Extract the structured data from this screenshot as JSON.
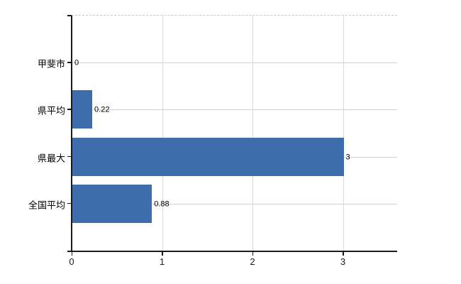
{
  "chart_data": {
    "type": "bar",
    "orientation": "horizontal",
    "title": "",
    "categories": [
      "甲斐市",
      "県平均",
      "県最大",
      "全国平均"
    ],
    "values": [
      0,
      0.22,
      3,
      0.88
    ],
    "value_labels": [
      "0",
      "0.22",
      "3",
      "0.88"
    ],
    "x_axis": {
      "min": 0,
      "max": 3.6,
      "ticks": [
        0,
        1,
        2,
        3
      ],
      "tick_labels": [
        "0",
        "1",
        "2",
        "3"
      ]
    },
    "grid": true,
    "legend": "none",
    "colors": {
      "bar": "#3d6dab",
      "h_gridline": "#ccd5cb",
      "v_gridline": "#d9d9d9",
      "plot_top_border": "#c9c9c9",
      "axis": "#1a1a1a",
      "text": "#000000"
    }
  }
}
